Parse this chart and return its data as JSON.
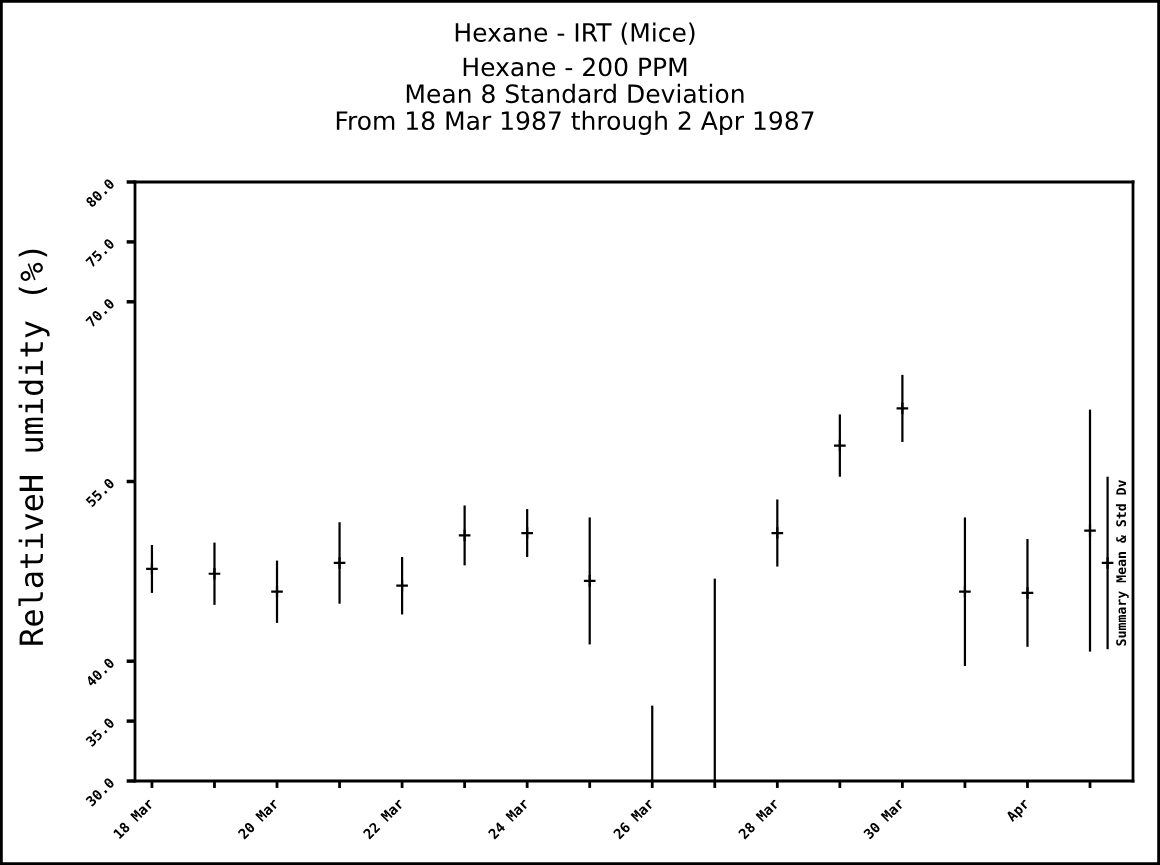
{
  "chart_data": {
    "type": "scatter",
    "title": "Hexane - IRT (Mice)",
    "subtitle": "Hexane - 200 PPM\nMean 8 Standard Deviation\nFrom 18 Mar 1987 through 2 Apr 1987",
    "ylabel": "RelativeH umidity (%)",
    "marker": "cross",
    "grid": false,
    "xlim": [
      "1987-03-17T17:30",
      "1987-04-02T16:30"
    ],
    "xticks": [
      {
        "value": "1987-03-18",
        "label": "18 Mar"
      },
      {
        "value": "1987-03-19",
        "label": null
      },
      {
        "value": "1987-03-20",
        "label": "20 Mar"
      },
      {
        "value": "1987-03-21",
        "label": null
      },
      {
        "value": "1987-03-22",
        "label": "22 Mar"
      },
      {
        "value": "1987-03-23",
        "label": null
      },
      {
        "value": "1987-03-24",
        "label": "24 Mar"
      },
      {
        "value": "1987-03-25",
        "label": null
      },
      {
        "value": "1987-03-26",
        "label": "26 Mar"
      },
      {
        "value": "1987-03-27",
        "label": null
      },
      {
        "value": "1987-03-28",
        "label": "28 Mar"
      },
      {
        "value": "1987-03-29",
        "label": null
      },
      {
        "value": "1987-03-30",
        "label": "30 Mar"
      },
      {
        "value": "1987-03-31",
        "label": null
      },
      {
        "value": "1987-04-01",
        "label": "Apr"
      },
      {
        "value": "1987-04-02",
        "label": null
      }
    ],
    "ylim": [
      30,
      80
    ],
    "yticks": [
      {
        "value": 30,
        "label": "30.0"
      },
      {
        "value": 35,
        "label": "35.0"
      },
      {
        "value": 40,
        "label": "40.0"
      },
      {
        "value": 55,
        "label": "55.0"
      },
      {
        "value": 70,
        "label": "70.0"
      },
      {
        "value": 75,
        "label": "75.0"
      },
      {
        "value": 80,
        "label": "80.0"
      }
    ],
    "series": [
      {
        "color": "#000000",
        "x": [
          "1987-03-18",
          "1987-03-19",
          "1987-03-20",
          "1987-03-21",
          "1987-03-22",
          "1987-03-23",
          "1987-03-24",
          "1987-03-25",
          "1987-03-26",
          "1987-03-27",
          "1987-03-28",
          "1987-03-29",
          "1987-03-30",
          "1987-03-31",
          "1987-04-01",
          "1987-04-02"
        ],
        "values": [
          47.7,
          47.3,
          45.8,
          48.2,
          46.3,
          50.5,
          50.7,
          46.7,
          null,
          null,
          50.7,
          58.0,
          61.1,
          45.8,
          45.7,
          50.9
        ],
        "errors": [
          2.0,
          2.6,
          2.6,
          3.4,
          2.4,
          2.5,
          2.0,
          5.3,
          null,
          null,
          2.8,
          2.6,
          2.8,
          6.2,
          4.5,
          10.1
        ]
      },
      {
        "type": "line",
        "marker": "none",
        "color": "#000000",
        "x": [
          "1987-03-26",
          "1987-03-26"
        ],
        "values": [
          30,
          36.2
        ]
      },
      {
        "type": "line",
        "marker": "none",
        "color": "#000000",
        "x": [
          "1987-03-27",
          "1987-03-27"
        ],
        "values": [
          30,
          46.8
        ]
      },
      {
        "name": "Summary Mean & Std Dv",
        "color": "#000000",
        "x": [
          "1987-04-02T06:45"
        ],
        "values": [
          48.2
        ],
        "errors": [
          7.2
        ]
      }
    ]
  }
}
